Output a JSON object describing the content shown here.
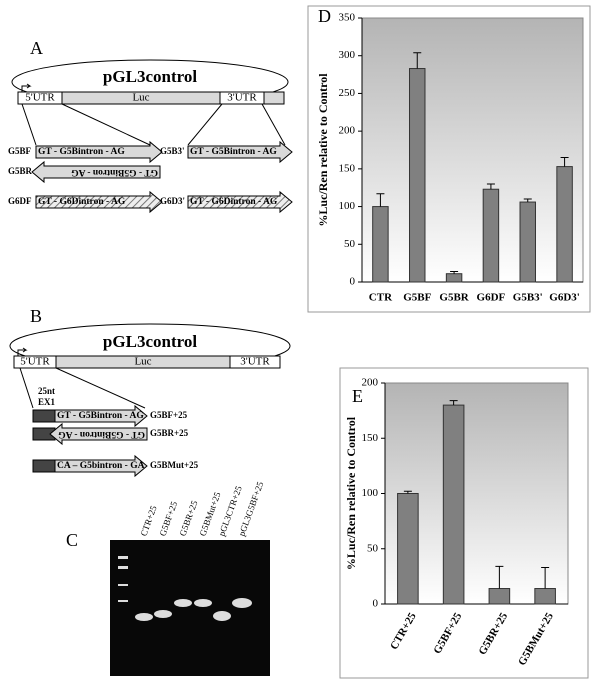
{
  "panels": {
    "a": {
      "label": "A",
      "plasmid": "pGL3control",
      "utr5": "5'UTR",
      "luc": "Luc",
      "utr3": "3'UTR",
      "constructs": [
        {
          "name": "G5BF",
          "insert": "GT - G5Bintron - AG"
        },
        {
          "name": "G5BR",
          "insert": "GT - G5Bintron - AG"
        },
        {
          "name": "G6DF",
          "insert": "GT - G6Dintron - AG"
        },
        {
          "name": "G5B3'",
          "insert": "GT - G5Bintron - AG"
        },
        {
          "name": "G6D3'",
          "insert": "GT - G6Dintron - AG"
        }
      ]
    },
    "b": {
      "label": "B",
      "plasmid": "pGL3control",
      "utr5": "5'UTR",
      "luc": "Luc",
      "utr3": "3'UTR",
      "exon": [
        "25nt",
        "EX1"
      ],
      "constructs": [
        {
          "name": "G5BF+25",
          "insert": "GT - G5Bintron - AG"
        },
        {
          "name": "G5BR+25",
          "insert": "GT - G5Bintron - AG"
        },
        {
          "name": "G5BMut+25",
          "insert": "CA – G5bintron - GA"
        }
      ]
    },
    "c": {
      "label": "C",
      "lanes": [
        "CTR+25",
        "G5BF+25",
        "G5BR+25",
        "G5BMut+25",
        "pGL3CTR+25",
        "pGL3G5BF+25"
      ]
    }
  },
  "chart_data": [
    {
      "type": "bar",
      "panel": "D",
      "y_label": "%Luc/Ren relative to Control",
      "categories": [
        "CTR",
        "G5BF",
        "G5BR",
        "G6DF",
        "G5B3'",
        "G6D3'"
      ],
      "values": [
        100,
        283,
        11,
        123,
        106,
        153
      ],
      "errors": [
        17,
        21,
        3,
        7,
        4,
        12
      ],
      "color": "#808080",
      "ylim": [
        0,
        350
      ],
      "yticks": [
        0,
        50,
        100,
        150,
        200,
        250,
        300,
        350
      ]
    },
    {
      "type": "bar",
      "panel": "E",
      "y_label": "%Luc/Ren relative to Control",
      "categories": [
        "CTR+25",
        "G5BF+25",
        "G5BR+25",
        "G5BMut+25"
      ],
      "values": [
        100,
        180,
        14,
        14
      ],
      "errors": [
        2,
        4,
        20,
        19
      ],
      "color": "#808080",
      "ylim": [
        0,
        200
      ],
      "yticks": [
        0,
        50,
        100,
        150,
        200
      ]
    }
  ]
}
